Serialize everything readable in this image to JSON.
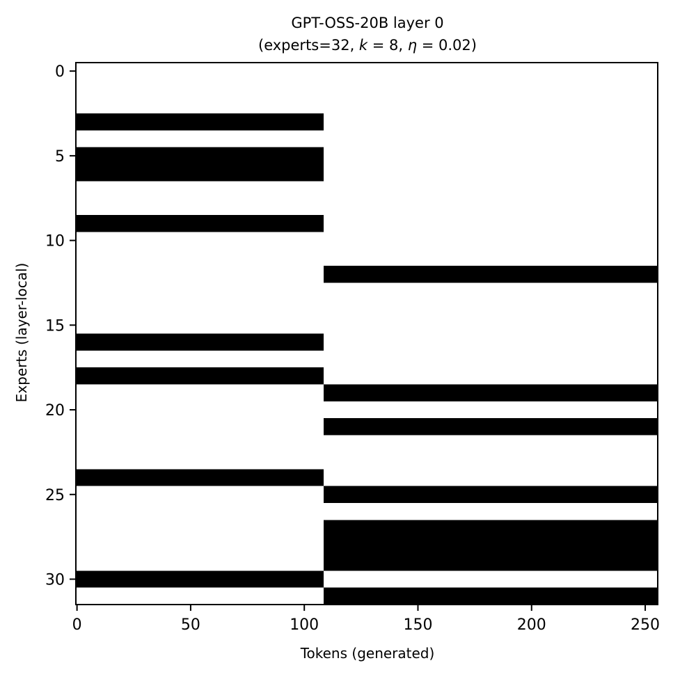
{
  "chart_data": {
    "type": "heatmap",
    "title_line1": "GPT-OSS-20B layer 0",
    "title_line2_prefix": "(experts=32, ",
    "title_k_symbol": "k",
    "title_k_value": " = 8, ",
    "title_eta_symbol": "η",
    "title_eta_value": " = 0.02)",
    "xlabel": "Tokens (generated)",
    "ylabel": "Experts (layer-local)",
    "xlim": [
      -0.5,
      255.5
    ],
    "ylim": [
      -0.5,
      31.5
    ],
    "y_inverted": true,
    "x_ticks": [
      0,
      50,
      100,
      150,
      200,
      250
    ],
    "x_tick_labels": [
      "0",
      "50",
      "100",
      "150",
      "200",
      "250"
    ],
    "y_ticks": [
      0,
      5,
      10,
      15,
      20,
      25,
      30
    ],
    "y_tick_labels": [
      "0",
      "5",
      "10",
      "15",
      "20",
      "25",
      "30"
    ],
    "colormap": {
      "active": "#000000",
      "inactive": "#ffffff"
    },
    "segments": [
      {
        "token_start": 0,
        "token_end": 108,
        "active_experts": [
          3,
          5,
          6,
          9,
          16,
          18,
          24,
          30
        ]
      },
      {
        "token_start": 109,
        "token_end": 255,
        "active_experts": [
          12,
          19,
          21,
          25,
          27,
          28,
          29,
          31
        ]
      }
    ]
  }
}
